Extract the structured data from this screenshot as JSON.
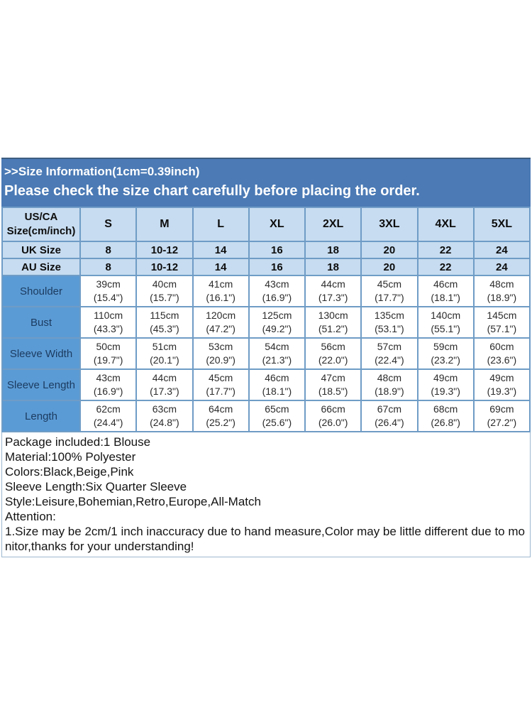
{
  "banner": {
    "line1": ">>Size Information(1cm=0.39inch)",
    "line2": "Please check the size chart carefully before placing the order."
  },
  "table": {
    "corner_line1": "US/CA",
    "corner_line2": "Size(cm/inch)",
    "sizes": [
      "S",
      "M",
      "L",
      "XL",
      "2XL",
      "3XL",
      "4XL",
      "5XL"
    ],
    "size_rows": [
      {
        "label": "UK Size",
        "values": [
          "8",
          "10-12",
          "14",
          "16",
          "18",
          "20",
          "22",
          "24"
        ]
      },
      {
        "label": "AU Size",
        "values": [
          "8",
          "10-12",
          "14",
          "16",
          "18",
          "20",
          "22",
          "24"
        ]
      }
    ],
    "measure_rows": [
      {
        "label": "Shoulder",
        "cm": [
          "39cm",
          "40cm",
          "41cm",
          "43cm",
          "44cm",
          "45cm",
          "46cm",
          "48cm"
        ],
        "inch": [
          "(15.4\")",
          "(15.7\")",
          "(16.1\")",
          "(16.9\")",
          "(17.3\")",
          "(17.7\")",
          "(18.1\")",
          "(18.9\")"
        ]
      },
      {
        "label": "Bust",
        "cm": [
          "110cm",
          "115cm",
          "120cm",
          "125cm",
          "130cm",
          "135cm",
          "140cm",
          "145cm"
        ],
        "inch": [
          "(43.3\")",
          "(45.3\")",
          "(47.2\")",
          "(49.2\")",
          "(51.2\")",
          "(53.1\")",
          "(55.1\")",
          "(57.1\")"
        ]
      },
      {
        "label": "Sleeve Width",
        "cm": [
          "50cm",
          "51cm",
          "53cm",
          "54cm",
          "56cm",
          "57cm",
          "59cm",
          "60cm"
        ],
        "inch": [
          "(19.7\")",
          "(20.1\")",
          "(20.9\")",
          "(21.3\")",
          "(22.0\")",
          "(22.4\")",
          "(23.2\")",
          "(23.6\")"
        ]
      },
      {
        "label": "Sleeve Length",
        "cm": [
          "43cm",
          "44cm",
          "45cm",
          "46cm",
          "47cm",
          "48cm",
          "49cm",
          "49cm"
        ],
        "inch": [
          "(16.9\")",
          "(17.3\")",
          "(17.7\")",
          "(18.1\")",
          "(18.5\")",
          "(18.9\")",
          "(19.3\")",
          "(19.3\")"
        ]
      },
      {
        "label": "Length",
        "cm": [
          "62cm",
          "63cm",
          "64cm",
          "65cm",
          "66cm",
          "67cm",
          "68cm",
          "69cm"
        ],
        "inch": [
          "(24.4\")",
          "(24.8\")",
          "(25.2\")",
          "(25.6\")",
          "(26.0\")",
          "(26.4\")",
          "(26.8\")",
          "(27.2\")"
        ]
      }
    ]
  },
  "details": {
    "lines": [
      "Package included:1 Blouse",
      "Material:100% Polyester",
      "Colors:Black,Beige,Pink",
      "Sleeve Length:Six Quarter Sleeve",
      "Style:Leisure,Bohemian,Retro,Europe,All-Match",
      "Attention:",
      "1.Size may be 2cm/1 inch inaccuracy due to hand measure,Color may be little different due to monitor,thanks for your understanding!"
    ]
  },
  "colors": {
    "banner_blue": "#4b7ab5",
    "header_light_blue": "#c7dcf0",
    "label_column_blue": "#5b9bd5",
    "grid_border": "#6f9cc6",
    "label_text_navy": "#1c3c61"
  }
}
